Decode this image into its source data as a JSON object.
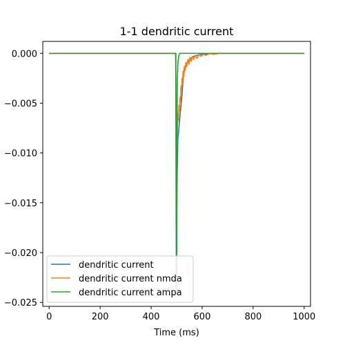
{
  "chart_data": {
    "type": "line",
    "title": "1-1 dendritic current",
    "xlabel": "Time (ms)",
    "ylabel": "",
    "xlim": [
      -25,
      1025
    ],
    "ylim": [
      -0.0254,
      0.0012
    ],
    "xticks": [
      0,
      200,
      400,
      600,
      800,
      1000
    ],
    "xtick_labels": [
      "0",
      "200",
      "400",
      "600",
      "800",
      "1000"
    ],
    "yticks": [
      0.0,
      -0.005,
      -0.01,
      -0.015,
      -0.02,
      -0.025
    ],
    "ytick_labels": [
      "0.000",
      "−0.005",
      "−0.010",
      "−0.015",
      "−0.020",
      "−0.025"
    ],
    "grid": false,
    "legend_position": "lower-left",
    "series": [
      {
        "name": "dendritic current",
        "color": "#1f77b4",
        "points": [
          [
            0,
            0
          ],
          [
            495,
            0
          ],
          [
            497,
            0
          ],
          [
            498,
            -0.016
          ],
          [
            499,
            -0.024
          ],
          [
            500,
            -0.0205
          ],
          [
            502,
            -0.0122
          ],
          [
            505,
            -0.0085
          ],
          [
            508,
            -0.0078
          ],
          [
            511,
            -0.0068
          ],
          [
            514,
            -0.006
          ],
          [
            517,
            -0.0053
          ],
          [
            520,
            -0.0045
          ],
          [
            523,
            -0.0035
          ],
          [
            526,
            -0.0024
          ],
          [
            530,
            -0.0018
          ],
          [
            535,
            -0.0014
          ],
          [
            540,
            -0.001
          ],
          [
            548,
            -0.0007
          ],
          [
            556,
            -0.0005
          ],
          [
            566,
            -0.0003
          ],
          [
            580,
            -0.0002
          ],
          [
            600,
            -0.0001
          ],
          [
            640,
            0
          ],
          [
            1000,
            0
          ]
        ]
      },
      {
        "name": "dendritic current nmda",
        "color": "#ff7f0e",
        "points": [
          [
            0,
            0
          ],
          [
            496,
            0
          ],
          [
            498,
            -0.004
          ],
          [
            500,
            -0.0075
          ],
          [
            502,
            -0.0095
          ],
          [
            503,
            -0.0075
          ],
          [
            505,
            -0.006
          ],
          [
            507,
            -0.0067
          ],
          [
            509,
            -0.0052
          ],
          [
            511,
            -0.0058
          ],
          [
            513,
            -0.0044
          ],
          [
            515,
            -0.0049
          ],
          [
            517,
            -0.0033
          ],
          [
            519,
            -0.0039
          ],
          [
            521,
            -0.0025
          ],
          [
            523,
            -0.0031
          ],
          [
            525,
            -0.0018
          ],
          [
            527,
            -0.0023
          ],
          [
            530,
            -0.0013
          ],
          [
            533,
            -0.0017
          ],
          [
            536,
            -0.0009
          ],
          [
            540,
            -0.0013
          ],
          [
            544,
            -0.0006
          ],
          [
            548,
            -0.0011
          ],
          [
            552,
            -0.0004
          ],
          [
            557,
            -0.0008
          ],
          [
            562,
            -0.0003
          ],
          [
            567,
            -0.0006
          ],
          [
            573,
            -0.0002
          ],
          [
            580,
            -0.0005
          ],
          [
            588,
            -0.0001
          ],
          [
            596,
            -0.0003
          ],
          [
            605,
            -0.0001
          ],
          [
            615,
            -0.0002
          ],
          [
            630,
            0
          ],
          [
            645,
            -0.0001
          ],
          [
            665,
            0
          ],
          [
            1000,
            0
          ]
        ]
      },
      {
        "name": "dendritic current ampa",
        "color": "#2ca02c",
        "points": [
          [
            0,
            0
          ],
          [
            496,
            0
          ],
          [
            497,
            -0.004
          ],
          [
            498,
            -0.014
          ],
          [
            499,
            -0.0205
          ],
          [
            500,
            -0.0205
          ],
          [
            501,
            -0.012
          ],
          [
            502,
            -0.006
          ],
          [
            503,
            -0.0025
          ],
          [
            505,
            -0.001
          ],
          [
            508,
            -0.0003
          ],
          [
            512,
            0
          ],
          [
            1000,
            0
          ]
        ]
      }
    ]
  }
}
